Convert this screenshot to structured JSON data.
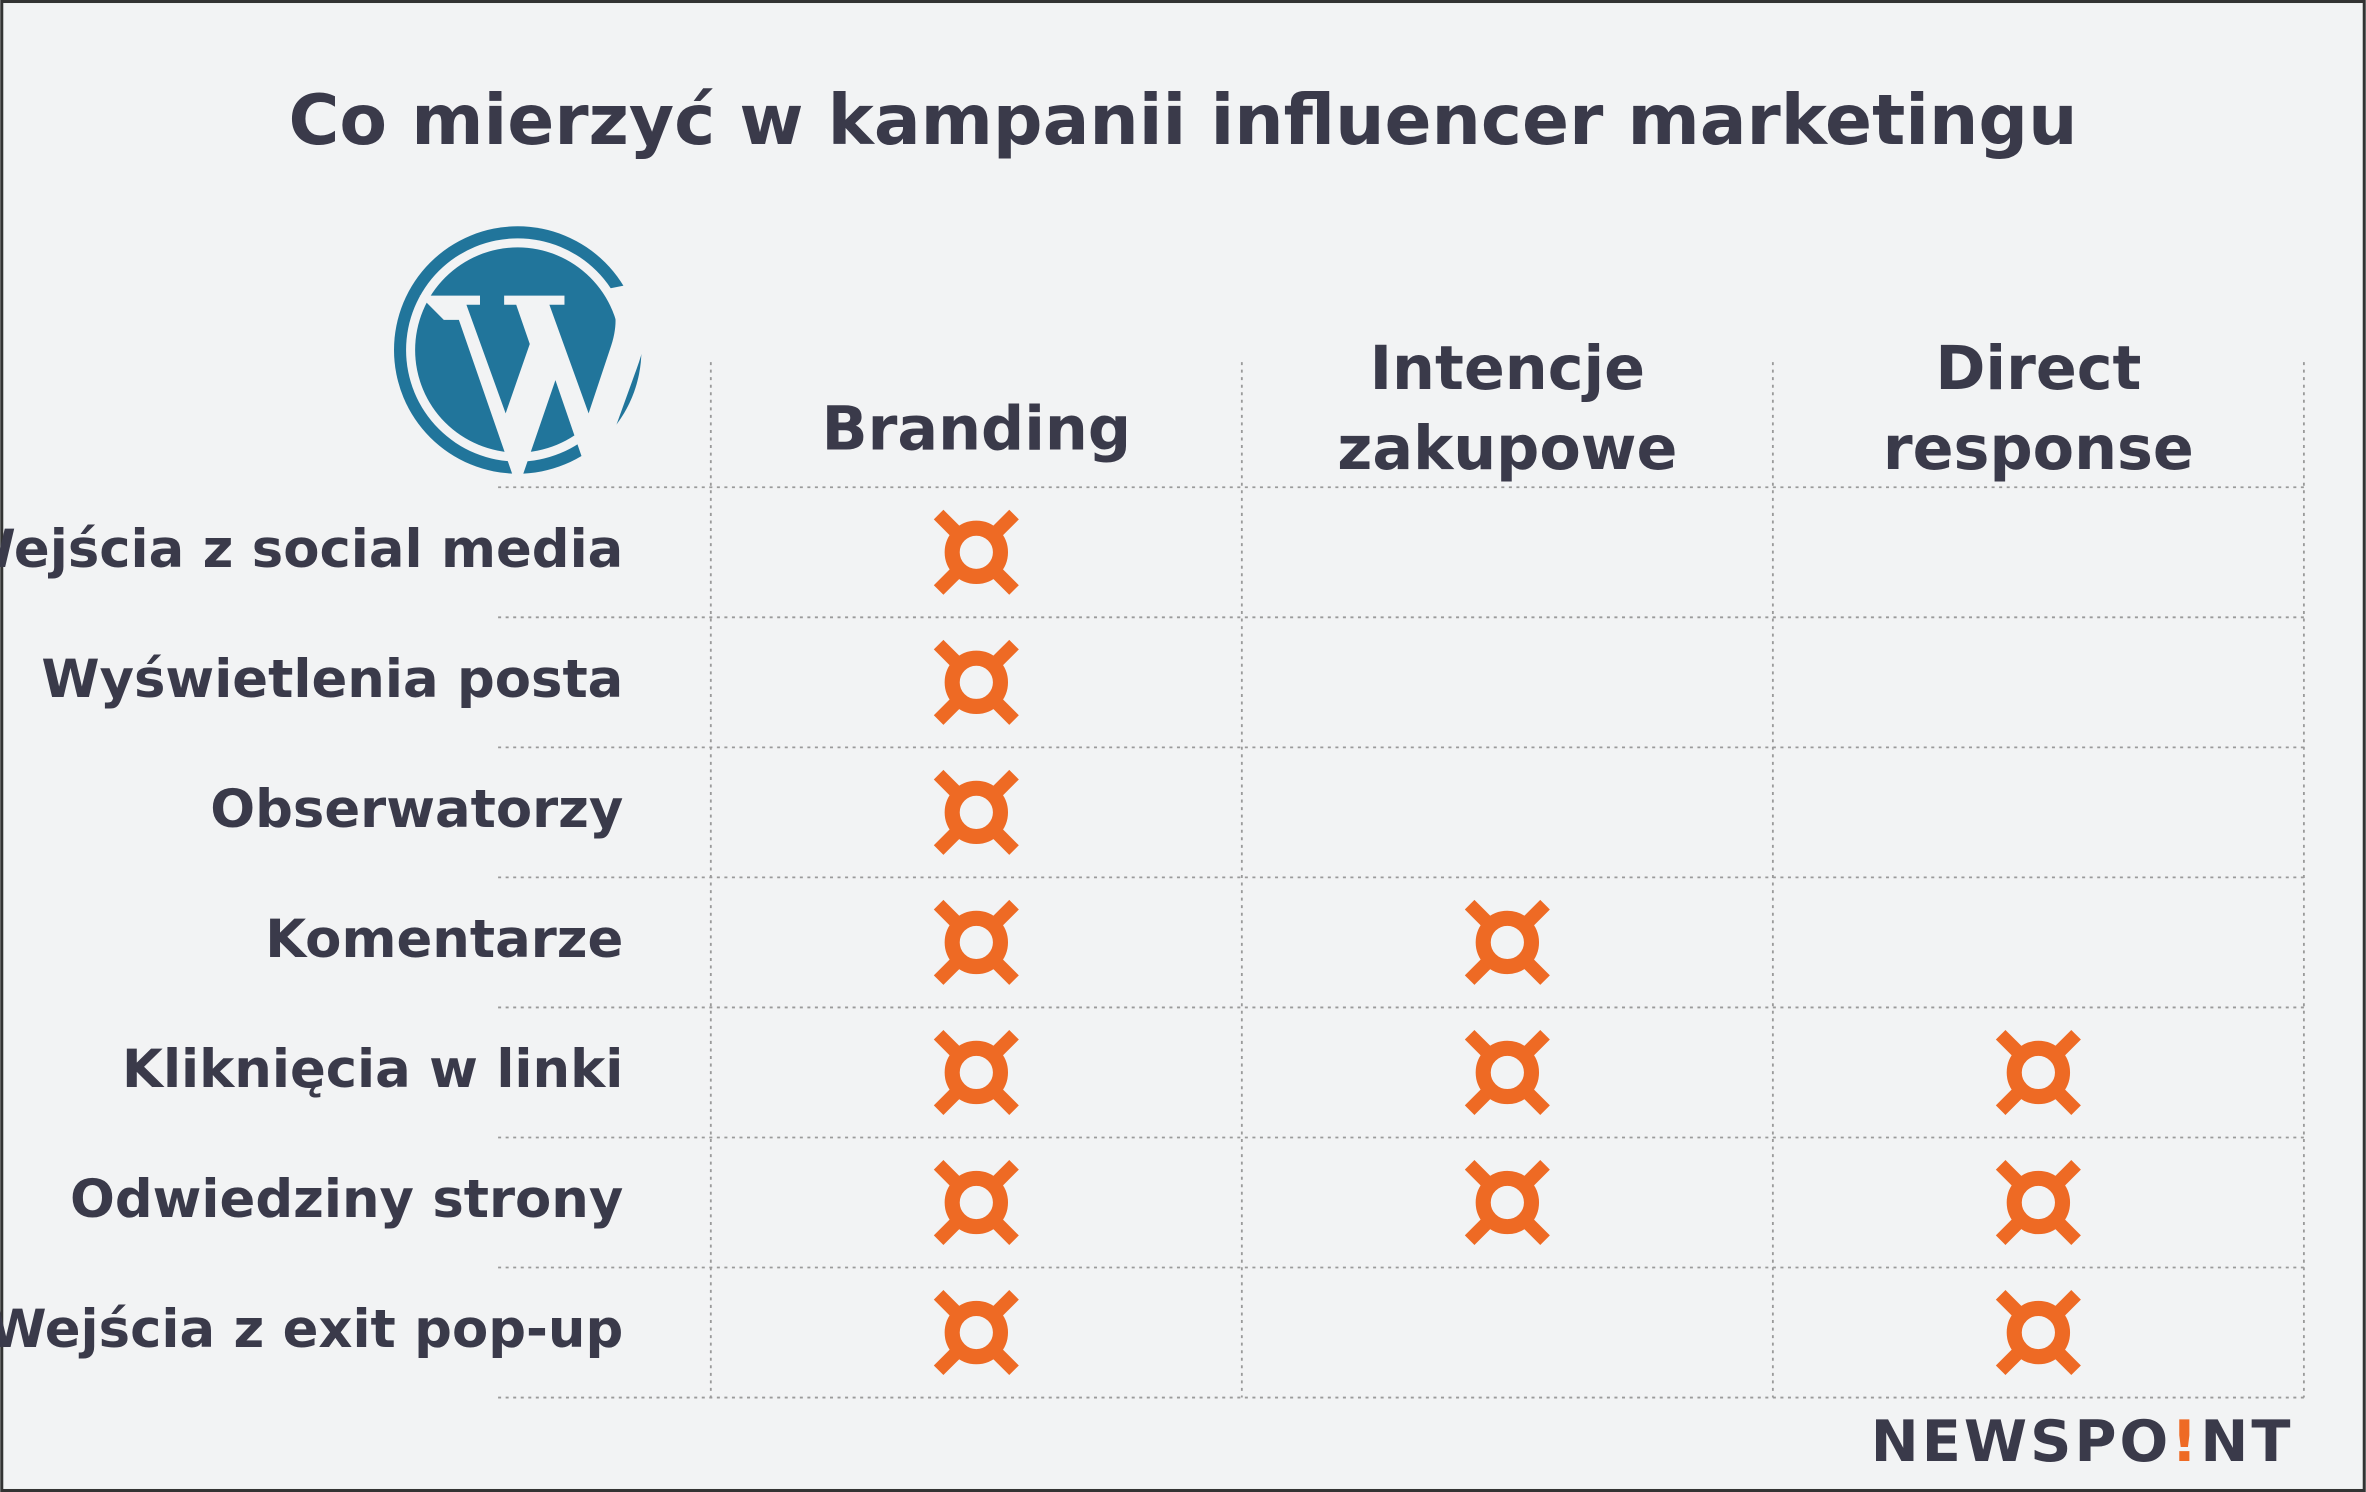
{
  "header": {
    "title": "Co mierzyć w kampanii influencer marketingu"
  },
  "table": {
    "columns": [
      [
        "Branding"
      ],
      [
        "Intencje",
        "zakupowe"
      ],
      [
        "Direct",
        "response"
      ]
    ],
    "rows": [
      {
        "label": "Wejścia z social media",
        "marks": [
          true,
          false,
          false
        ]
      },
      {
        "label": "Wyświetlenia posta",
        "marks": [
          true,
          false,
          false
        ]
      },
      {
        "label": "Obserwatorzy",
        "marks": [
          true,
          false,
          false
        ]
      },
      {
        "label": "Komentarze",
        "marks": [
          true,
          true,
          false
        ]
      },
      {
        "label": "Kliknięcia w linki",
        "marks": [
          true,
          true,
          true
        ]
      },
      {
        "label": "Odwiedziny strony",
        "marks": [
          true,
          true,
          true
        ]
      },
      {
        "label": "Wejścia z exit pop-up",
        "marks": [
          true,
          false,
          true
        ]
      }
    ]
  },
  "footer": {
    "brand": [
      "NEWSPO",
      "!",
      "NT"
    ]
  }
}
